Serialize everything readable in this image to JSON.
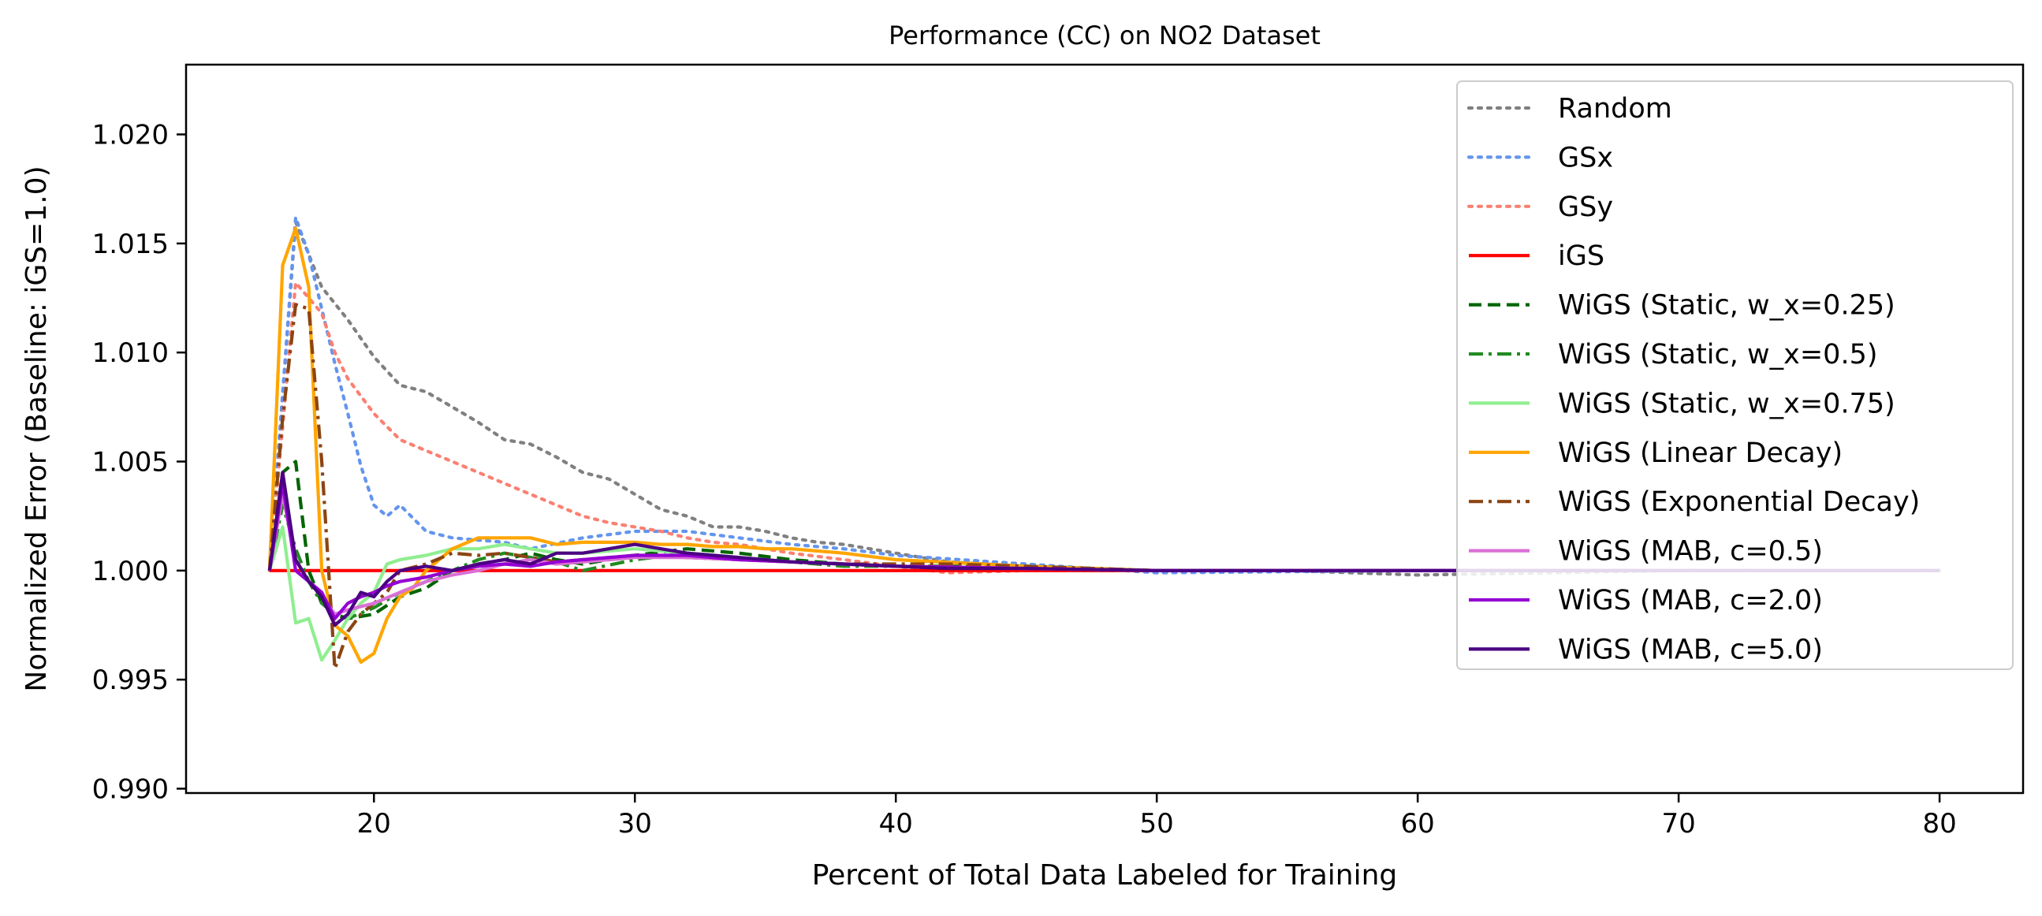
{
  "chart_data": {
    "type": "line",
    "title": "Performance (CC) on NO2 Dataset",
    "xlabel": "Percent of Total Data Labeled for Training",
    "ylabel": "Normalized Error (Baseline: iGS=1.0)",
    "xlim": [
      12.8,
      83.2
    ],
    "ylim": [
      0.9898,
      1.0232
    ],
    "xticks": [
      20,
      30,
      40,
      50,
      60,
      70,
      80
    ],
    "xtick_labels": [
      "20",
      "30",
      "40",
      "50",
      "60",
      "70",
      "80"
    ],
    "yticks": [
      0.99,
      0.995,
      1.0,
      1.005,
      1.01,
      1.015,
      1.02
    ],
    "ytick_labels": [
      "0.990",
      "0.995",
      "1.000",
      "1.005",
      "1.010",
      "1.015",
      "1.020"
    ],
    "grid": false,
    "legend_position": "top-right",
    "series": [
      {
        "name": "Random",
        "color": "#808080",
        "dash": "dotted",
        "x": [
          16,
          17,
          18,
          19,
          20,
          21,
          22,
          23,
          24,
          25,
          26,
          27,
          28,
          29,
          30,
          31,
          32,
          33,
          34,
          35,
          36,
          37,
          38,
          40,
          42,
          45,
          50,
          55,
          60,
          65,
          70,
          75,
          80
        ],
        "y": [
          1.0,
          1.016,
          1.013,
          1.0115,
          1.0098,
          1.0085,
          1.0082,
          1.0075,
          1.0068,
          1.006,
          1.0058,
          1.0052,
          1.0045,
          1.0042,
          1.0035,
          1.0028,
          1.0025,
          1.002,
          1.002,
          1.0018,
          1.0015,
          1.0013,
          1.0012,
          1.0008,
          1.0004,
          1.0002,
          1.0,
          1.0,
          0.9998,
          0.9999,
          1.0,
          1.0,
          1.0
        ]
      },
      {
        "name": "GSx",
        "color": "#6495ED",
        "dash": "dotted",
        "x": [
          16,
          17,
          17.5,
          18,
          18.5,
          19,
          19.5,
          20,
          20.5,
          21,
          22,
          23,
          24,
          25,
          26,
          28,
          30,
          32,
          34,
          36,
          38,
          40,
          45,
          50,
          60,
          70,
          80
        ],
        "y": [
          1.0,
          1.0162,
          1.0145,
          1.012,
          1.0095,
          1.0072,
          1.0048,
          1.003,
          1.0025,
          1.003,
          1.0018,
          1.0015,
          1.0014,
          1.0013,
          1.001,
          1.0015,
          1.0018,
          1.0018,
          1.0015,
          1.0012,
          1.001,
          1.0007,
          1.0003,
          0.9999,
          1.0,
          1.0,
          1.0
        ]
      },
      {
        "name": "GSy",
        "color": "#FA8072",
        "dash": "dotted",
        "x": [
          16,
          17,
          17.5,
          18,
          18.5,
          19,
          20,
          21,
          22,
          23,
          24,
          25,
          26,
          27,
          28,
          29,
          30,
          31,
          32,
          33,
          34,
          35,
          36,
          38,
          40,
          42,
          45,
          50,
          60,
          70,
          80
        ],
        "y": [
          1.0,
          1.0132,
          1.0125,
          1.0118,
          1.01,
          1.0088,
          1.0072,
          1.006,
          1.0055,
          1.005,
          1.0045,
          1.004,
          1.0035,
          1.003,
          1.0025,
          1.0022,
          1.002,
          1.0018,
          1.0015,
          1.0013,
          1.0012,
          1.001,
          1.0008,
          1.0005,
          1.0002,
          0.9999,
          1.0,
          1.0,
          1.0,
          1.0,
          1.0
        ]
      },
      {
        "name": "iGS",
        "color": "#FF0000",
        "dash": "solid",
        "x": [
          16,
          80
        ],
        "y": [
          1.0,
          1.0
        ]
      },
      {
        "name": "WiGS (Static, w_x=0.25)",
        "color": "#006400",
        "dash": "dashed",
        "x": [
          16,
          16.5,
          17,
          17.5,
          18,
          18.5,
          19,
          20,
          21,
          22,
          23,
          24,
          25,
          26,
          27,
          28,
          29,
          30,
          32,
          34,
          36,
          38,
          40,
          45,
          50,
          60,
          70,
          80
        ],
        "y": [
          1.0,
          1.0045,
          1.005,
          1.0,
          0.9985,
          0.998,
          0.9978,
          0.998,
          0.9988,
          0.9992,
          1.0,
          1.0003,
          1.0005,
          1.0008,
          1.0005,
          1.0003,
          1.0005,
          1.0007,
          1.001,
          1.0008,
          1.0005,
          1.0003,
          1.0002,
          1.0002,
          1.0,
          1.0,
          1.0,
          1.0
        ]
      },
      {
        "name": "WiGS (Static, w_x=0.5)",
        "color": "#228B22",
        "dash": "dashdot",
        "x": [
          16,
          16.5,
          17,
          17.5,
          18,
          18.5,
          19,
          20,
          21,
          22,
          23,
          24,
          25,
          26,
          27,
          28,
          30,
          32,
          34,
          36,
          38,
          40,
          45,
          50,
          60,
          70,
          80
        ],
        "y": [
          1.0,
          1.003,
          1.001,
          0.9995,
          0.9985,
          0.998,
          0.9978,
          0.9983,
          0.999,
          0.9995,
          1.0,
          1.0005,
          1.0008,
          1.0006,
          1.0004,
          1.0,
          1.0005,
          1.0008,
          1.0006,
          1.0004,
          1.0002,
          1.0002,
          1.0001,
          1.0,
          1.0,
          1.0,
          1.0
        ]
      },
      {
        "name": "WiGS (Static, w_x=0.75)",
        "color": "#90EE90",
        "dash": "solid",
        "x": [
          16,
          16.5,
          17,
          17.5,
          18,
          18.5,
          19,
          19.5,
          20,
          20.5,
          21,
          22,
          23,
          24,
          25,
          26,
          27,
          28,
          30,
          32,
          34,
          36,
          38,
          40,
          45,
          50,
          60,
          70,
          80
        ],
        "y": [
          1.0,
          1.002,
          0.9976,
          0.9978,
          0.9959,
          0.9968,
          0.9978,
          0.9985,
          0.999,
          1.0003,
          1.0005,
          1.0007,
          1.001,
          1.001,
          1.0012,
          1.001,
          1.0008,
          1.0008,
          1.001,
          1.0008,
          1.0006,
          1.0004,
          1.0003,
          1.0002,
          1.0001,
          1.0,
          1.0,
          1.0,
          1.0
        ]
      },
      {
        "name": "WiGS (Linear Decay)",
        "color": "#FFA500",
        "dash": "solid",
        "x": [
          16,
          16.5,
          17,
          17.5,
          18,
          18.5,
          19,
          19.5,
          20,
          20.5,
          21,
          21.5,
          22,
          23,
          24,
          25,
          26,
          27,
          28,
          29,
          30,
          31,
          32,
          33,
          34,
          35,
          36,
          38,
          40,
          45,
          50,
          60,
          70,
          80
        ],
        "y": [
          1.0,
          1.014,
          1.0157,
          1.013,
          1.0,
          0.9975,
          0.997,
          0.9958,
          0.9962,
          0.9978,
          0.9988,
          0.9992,
          1.0,
          1.001,
          1.0015,
          1.0015,
          1.0015,
          1.0012,
          1.0013,
          1.0013,
          1.0013,
          1.0012,
          1.0012,
          1.0011,
          1.0011,
          1.001,
          1.001,
          1.0008,
          1.0005,
          1.0002,
          1.0,
          1.0,
          1.0,
          1.0
        ]
      },
      {
        "name": "WiGS (Exponential Decay)",
        "color": "#8B4513",
        "dash": "dashdot",
        "x": [
          16,
          16.5,
          17,
          17.5,
          18,
          18.5,
          19,
          19.5,
          20,
          20.5,
          21,
          22,
          23,
          24,
          25,
          26,
          27,
          28,
          30,
          32,
          34,
          36,
          38,
          40,
          42,
          45,
          50,
          60,
          70,
          80
        ],
        "y": [
          1.0,
          1.007,
          1.0122,
          1.012,
          1.005,
          0.9955,
          0.9972,
          0.998,
          0.9985,
          0.999,
          1.0,
          1.0003,
          1.0008,
          1.0007,
          1.0008,
          1.0006,
          1.0004,
          1.0005,
          1.0007,
          1.0006,
          1.0005,
          1.0004,
          1.0003,
          1.0003,
          1.0003,
          1.0002,
          1.0,
          1.0,
          1.0,
          1.0
        ]
      },
      {
        "name": "WiGS (MAB, c=0.5)",
        "color": "#DA70D6",
        "dash": "solid",
        "x": [
          16,
          16.5,
          17,
          17.5,
          18,
          18.5,
          19,
          20,
          21,
          22,
          23,
          24,
          25,
          26,
          27,
          28,
          30,
          32,
          34,
          36,
          38,
          40,
          45,
          50,
          60,
          70,
          80
        ],
        "y": [
          1.0,
          1.0035,
          1.0005,
          0.9995,
          0.9988,
          0.998,
          0.9982,
          0.9985,
          0.999,
          0.9995,
          0.9998,
          1.0,
          1.0003,
          1.0005,
          1.0003,
          1.0004,
          1.0006,
          1.0006,
          1.0005,
          1.0004,
          1.0003,
          1.0002,
          1.0001,
          1.0,
          1.0,
          1.0,
          1.0
        ]
      },
      {
        "name": "WiGS (MAB, c=2.0)",
        "color": "#9400D3",
        "dash": "solid",
        "x": [
          16,
          16.5,
          17,
          17.5,
          18,
          18.5,
          19,
          19.5,
          20,
          20.5,
          21,
          22,
          23,
          24,
          25,
          26,
          27,
          28,
          30,
          32,
          34,
          36,
          38,
          40,
          45,
          50,
          60,
          70,
          80
        ],
        "y": [
          1.0,
          1.004,
          1.0,
          0.9995,
          0.999,
          0.9978,
          0.9985,
          0.9988,
          0.999,
          0.9993,
          0.9995,
          0.9997,
          1.0,
          1.0002,
          1.0003,
          1.0002,
          1.0004,
          1.0005,
          1.0007,
          1.0007,
          1.0005,
          1.0004,
          1.0003,
          1.0002,
          1.0001,
          1.0,
          1.0,
          1.0,
          1.0
        ]
      },
      {
        "name": "WiGS (MAB, c=5.0)",
        "color": "#4B0082",
        "dash": "solid",
        "x": [
          16,
          16.5,
          17,
          17.5,
          18,
          18.5,
          19,
          19.5,
          20,
          20.5,
          21,
          22,
          23,
          24,
          25,
          26,
          27,
          28,
          29,
          30,
          31,
          32,
          34,
          36,
          38,
          40,
          42,
          45,
          50,
          55,
          60,
          65,
          70,
          75,
          80
        ],
        "y": [
          1.0,
          1.0045,
          1.0005,
          0.9995,
          0.9988,
          0.9975,
          0.998,
          0.999,
          0.9988,
          0.9995,
          1.0,
          1.0002,
          1.0,
          1.0003,
          1.0005,
          1.0003,
          1.0008,
          1.0008,
          1.001,
          1.0012,
          1.001,
          1.0008,
          1.0006,
          1.0004,
          1.0003,
          1.0002,
          1.0001,
          1.0001,
          1.0,
          1.0,
          1.0,
          1.0,
          1.0,
          1.0,
          1.0
        ]
      }
    ]
  }
}
